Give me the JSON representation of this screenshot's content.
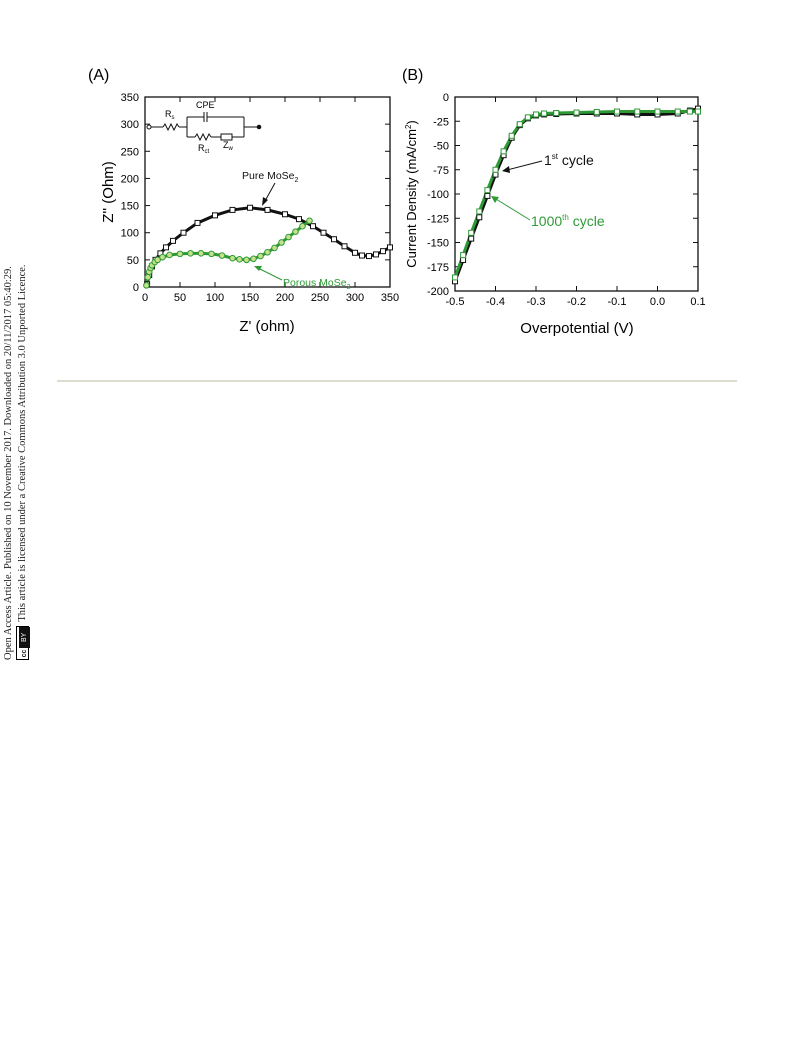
{
  "sidebar": {
    "line1": "Open Access Article. Published on 10 November 2017. Downloaded on 20/11/2017 05:40:29.",
    "line2": "This article is licensed under a Creative Commons Attribution 3.0 Unported Licence.",
    "badge_cc": "cc",
    "badge_by": "BY"
  },
  "colors": {
    "black": "#111111",
    "green": "#2e9a36",
    "green_light": "#c6e08c",
    "rule": "#dcdcd0"
  },
  "chart_data": [
    {
      "panel_label": "(A)",
      "type": "line",
      "xlabel": "Z' (ohm)",
      "ylabel": "Z'' (Ohm)",
      "xlim": [
        0,
        350
      ],
      "ylim": [
        0,
        350
      ],
      "xticks": [
        0,
        50,
        100,
        150,
        200,
        250,
        300,
        350
      ],
      "yticks": [
        0,
        50,
        100,
        150,
        200,
        250,
        300,
        350
      ],
      "series": [
        {
          "name": "Pure MoSe2",
          "color": "#111111",
          "x": [
            3,
            6,
            10,
            15,
            22,
            30,
            40,
            55,
            75,
            100,
            125,
            150,
            175,
            200,
            220,
            240,
            255,
            270,
            285,
            300,
            310,
            320,
            330,
            340,
            350
          ],
          "y": [
            5,
            22,
            38,
            50,
            62,
            73,
            85,
            100,
            118,
            132,
            142,
            146,
            142,
            134,
            125,
            112,
            100,
            88,
            75,
            63,
            58,
            57,
            60,
            66,
            73
          ]
        },
        {
          "name": "Porous MoSe2",
          "color": "#2e9a36",
          "x": [
            2,
            4,
            6,
            8,
            10,
            14,
            18,
            25,
            35,
            50,
            65,
            80,
            95,
            110,
            125,
            135,
            145,
            155,
            165,
            175,
            185,
            195,
            205,
            215,
            225,
            235
          ],
          "y": [
            3,
            18,
            28,
            35,
            40,
            46,
            50,
            55,
            59,
            61,
            62,
            62,
            61,
            58,
            53,
            51,
            50,
            52,
            57,
            64,
            72,
            82,
            92,
            102,
            112,
            122
          ]
        }
      ],
      "annotations": {
        "pure_main": "Pure MoSe",
        "pure_sub": "2",
        "porous_main": "Porous MoSe",
        "porous_sub": "2"
      },
      "inset": {
        "rs_main": "R",
        "rs_sub": "s",
        "cpe": "CPE",
        "rct_main": "R",
        "rct_sub": "ct",
        "zw_main": "Z",
        "zw_sub": "w"
      }
    },
    {
      "panel_label": "(B)",
      "type": "line",
      "xlabel": "Overpotential (V)",
      "ylabel_main": "Current Density (mA/cm",
      "ylabel_sup": "2",
      "ylabel_end": ")",
      "xlim": [
        -0.5,
        0.1
      ],
      "ylim": [
        -200,
        0
      ],
      "xticks": [
        -0.5,
        -0.4,
        -0.3,
        -0.2,
        -0.1,
        0.0,
        0.1
      ],
      "xtick_labels": [
        "-0.5",
        "-0.4",
        "-0.3",
        "-0.2",
        "-0.1",
        "0.0",
        "0.1"
      ],
      "yticks": [
        0,
        -25,
        -50,
        -75,
        -100,
        -125,
        -150,
        -175,
        -200
      ],
      "series": [
        {
          "name": "1st cycle",
          "color": "#111111",
          "x": [
            -0.5,
            -0.48,
            -0.46,
            -0.44,
            -0.42,
            -0.4,
            -0.38,
            -0.36,
            -0.34,
            -0.32,
            -0.3,
            -0.28,
            -0.25,
            -0.2,
            -0.15,
            -0.1,
            -0.05,
            0.0,
            0.05,
            0.08,
            0.1
          ],
          "y": [
            -190,
            -168,
            -146,
            -124,
            -102,
            -80,
            -60,
            -42,
            -29,
            -22,
            -19,
            -18,
            -17.5,
            -17,
            -17,
            -17,
            -18,
            -18,
            -17,
            -14,
            -12
          ]
        },
        {
          "name": "1000th cycle",
          "color": "#2e9a36",
          "x": [
            -0.5,
            -0.48,
            -0.46,
            -0.44,
            -0.42,
            -0.4,
            -0.38,
            -0.36,
            -0.34,
            -0.32,
            -0.3,
            -0.28,
            -0.25,
            -0.2,
            -0.15,
            -0.1,
            -0.05,
            0.0,
            0.05,
            0.08,
            0.1
          ],
          "y": [
            -186,
            -163,
            -140,
            -118,
            -96,
            -75,
            -56,
            -40,
            -28,
            -21,
            -18,
            -17,
            -16.5,
            -16,
            -15.5,
            -15,
            -15,
            -15,
            -15,
            -15,
            -15
          ]
        }
      ],
      "annotations": {
        "first_pre": "1",
        "first_sup": "st",
        "first_post": " cycle",
        "thousand_pre": "1000",
        "thousand_sup": "th",
        "thousand_post": " cycle"
      }
    }
  ]
}
